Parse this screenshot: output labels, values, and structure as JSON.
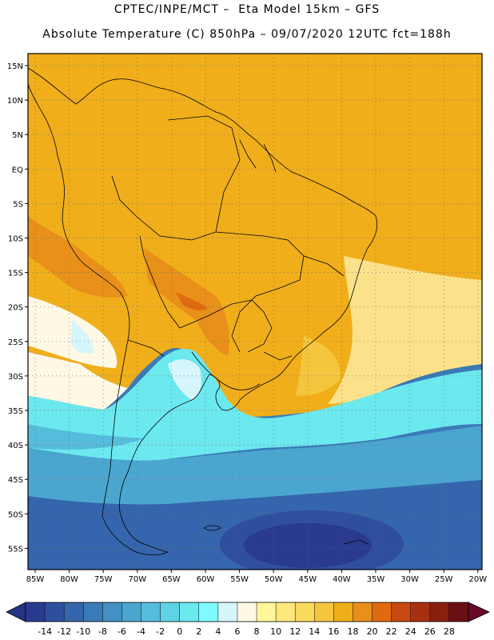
{
  "header": {
    "line1": "CPTEC/INPE/MCT –  Eta Model 15km – GFS",
    "line2": "Absolute Temperature (C) 850hPa – 09/07/2020 12UTC fct=188h"
  },
  "map": {
    "lat_labels": [
      "15N",
      "10N",
      "5N",
      "EQ",
      "5S",
      "10S",
      "15S",
      "20S",
      "25S",
      "30S",
      "35S",
      "40S",
      "45S",
      "50S",
      "55S"
    ],
    "lon_labels": [
      "85W",
      "80W",
      "75W",
      "70W",
      "65W",
      "60W",
      "55W",
      "50W",
      "45W",
      "40W",
      "35W",
      "30W",
      "25W",
      "20W"
    ],
    "grid": "dotted"
  },
  "colorbar": {
    "labels": [
      "-14",
      "-12",
      "-10",
      "-8",
      "-6",
      "-4",
      "-2",
      "0",
      "2",
      "4",
      "6",
      "8",
      "10",
      "12",
      "14",
      "16",
      "18",
      "20",
      "22",
      "24",
      "26",
      "28"
    ],
    "colors": [
      "#2a3b8f",
      "#2f4f9e",
      "#3565ac",
      "#3b7ab8",
      "#4390c4",
      "#4ba6cf",
      "#55bcdb",
      "#60d2e6",
      "#6ce8ef",
      "#7dfbff",
      "#d6f6fb",
      "#fff8e4",
      "#fef79a",
      "#fde97a",
      "#f9da5e",
      "#f4c63e",
      "#f0ae1a",
      "#e8901a",
      "#e06a10",
      "#c84a10",
      "#a83010",
      "#882010",
      "#6b1015"
    ],
    "low_end_color": "#243584",
    "high_end_color": "#6b0a28"
  },
  "colors": {
    "warm_orange": "#f0ae1a",
    "deep_orange": "#e8901a",
    "pale_yellow": "#fbe28a",
    "cyan": "#6ce8ef",
    "mid_blue": "#3b7ab8",
    "deep_blue": "#2a3b8f"
  }
}
